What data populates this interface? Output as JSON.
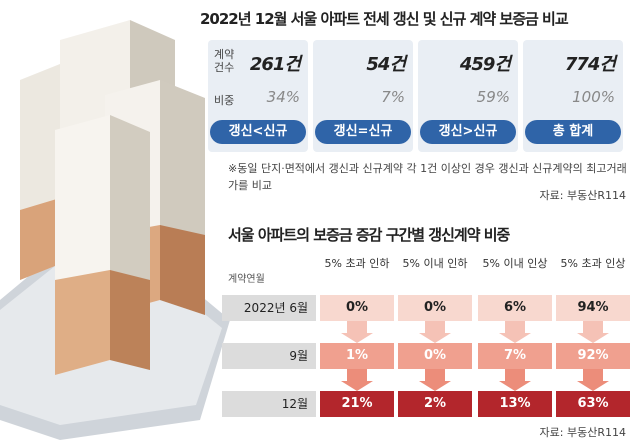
{
  "header": {
    "title": "2022년 12월 서울 아파트 전세 갱신 및 신규 계약 보증금 비교"
  },
  "summary": {
    "row_labels": [
      "계약 건수",
      "비중"
    ],
    "columns": [
      {
        "count": "261건",
        "share": "34%",
        "label": "갱신<신규"
      },
      {
        "count": "54건",
        "share": "7%",
        "label": "갱신=신규"
      },
      {
        "count": "459건",
        "share": "59%",
        "label": "갱신>신규"
      },
      {
        "count": "774건",
        "share": "100%",
        "label": "총 합계"
      }
    ],
    "note": "※동일 단지·면적에서 갱신과 신규계약 각 1건 이상인 경우 갱신과 신규계약의 최고거래가를 비교",
    "source": "자료: 부동산R114"
  },
  "section": {
    "title": "서울 아파트의 보증금 증감 구간별 갱신계약 비중"
  },
  "table": {
    "corner": "계약연월",
    "headers": [
      "5% 초과 인하",
      "5% 이내 인하",
      "5% 이내 인상",
      "5% 초과 인상"
    ],
    "rows": [
      {
        "label": "2022년 6월",
        "cells": [
          "0%",
          "0%",
          "6%",
          "94%"
        ]
      },
      {
        "label": "9월",
        "cells": [
          "1%",
          "0%",
          "7%",
          "92%"
        ]
      },
      {
        "label": "12월",
        "cells": [
          "21%",
          "2%",
          "13%",
          "63%"
        ]
      }
    ],
    "source": "자료: 부동산R114"
  }
}
